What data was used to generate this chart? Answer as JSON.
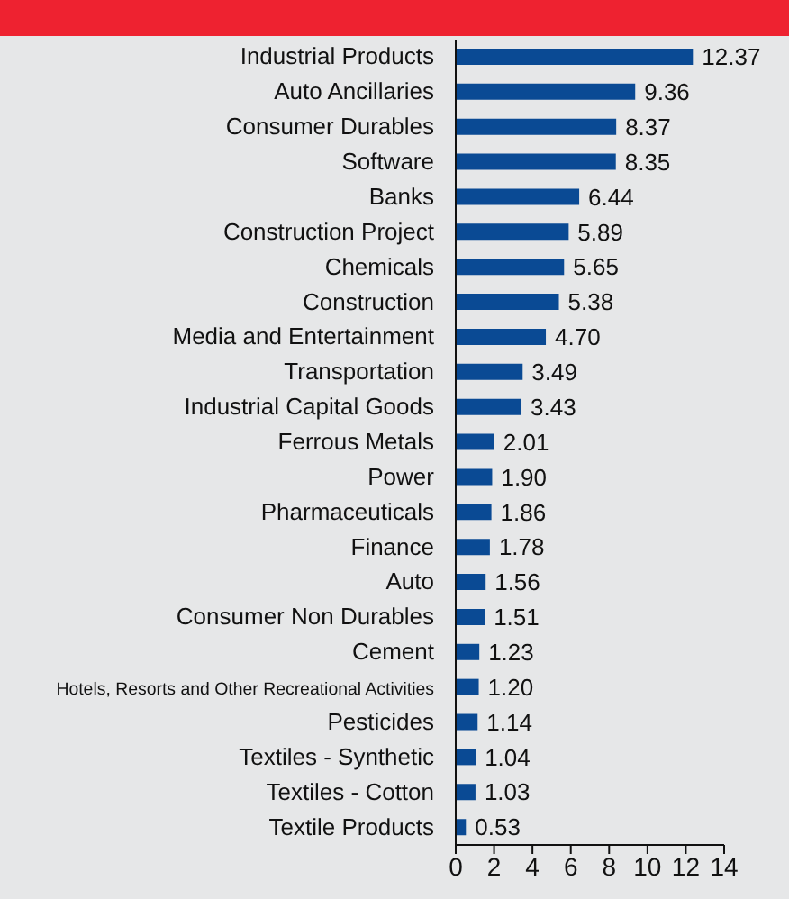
{
  "chart_data": {
    "type": "bar",
    "orientation": "horizontal",
    "categories": [
      "Industrial Products",
      "Auto Ancillaries",
      "Consumer Durables",
      "Software",
      "Banks",
      "Construction Project",
      "Chemicals",
      "Construction",
      "Media and Entertainment",
      "Transportation",
      "Industrial Capital Goods",
      "Ferrous Metals",
      "Power",
      "Pharmaceuticals",
      "Finance",
      "Auto",
      "Consumer Non Durables",
      "Cement",
      "Hotels, Resorts and Other Recreational Activities",
      "Pesticides",
      "Textiles - Synthetic",
      "Textiles - Cotton",
      "Textile Products"
    ],
    "values": [
      12.37,
      9.36,
      8.37,
      8.35,
      6.44,
      5.89,
      5.65,
      5.38,
      4.7,
      3.49,
      3.43,
      2.01,
      1.9,
      1.86,
      1.78,
      1.56,
      1.51,
      1.23,
      1.2,
      1.14,
      1.04,
      1.03,
      0.53
    ],
    "value_labels": [
      "12.37",
      "9.36",
      "8.37",
      "8.35",
      "6.44",
      "5.89",
      "5.65",
      "5.38",
      "4.70",
      "3.49",
      "3.43",
      "2.01",
      "1.90",
      "1.86",
      "1.78",
      "1.56",
      "1.51",
      "1.23",
      "1.20",
      "1.14",
      "1.04",
      "1.03",
      "0.53"
    ],
    "color": "#0a4a94",
    "xlim": [
      0,
      14
    ],
    "xticks": [
      0,
      2,
      4,
      6,
      8,
      10,
      12,
      14
    ],
    "grid": false
  }
}
